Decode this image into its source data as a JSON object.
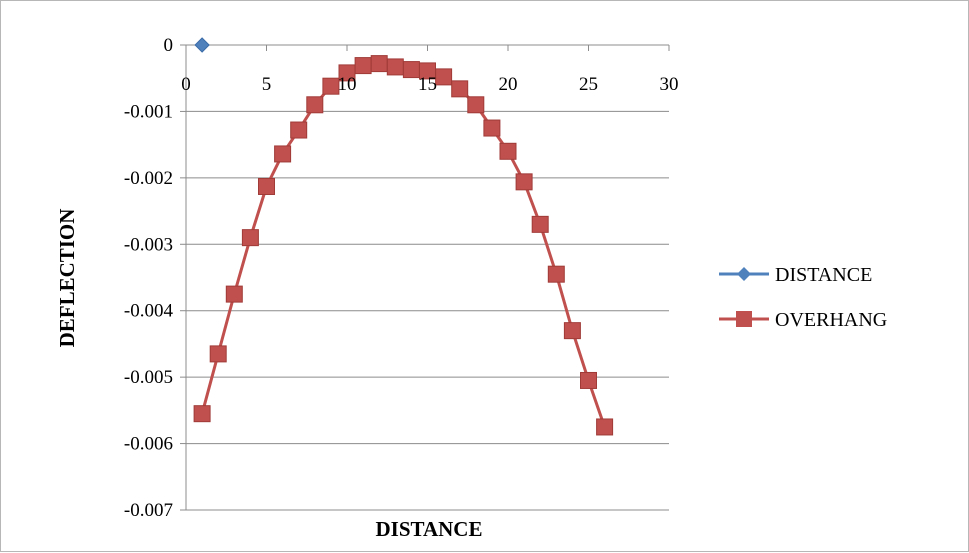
{
  "chart_data": {
    "type": "line",
    "title": "",
    "xlabel": "DISTANCE",
    "ylabel": "DEFLECTION",
    "xlim": [
      0,
      30
    ],
    "ylim": [
      -0.007,
      0
    ],
    "x_ticks": [
      0,
      5,
      10,
      15,
      20,
      25,
      30
    ],
    "y_ticks": [
      0,
      -0.001,
      -0.002,
      -0.003,
      -0.004,
      -0.005,
      -0.006,
      -0.007
    ],
    "x_tick_labels": [
      "0",
      "5",
      "10",
      "15",
      "20",
      "25",
      "30"
    ],
    "y_tick_labels": [
      "0",
      "-0.001",
      "-0.002",
      "-0.003",
      "-0.004",
      "-0.005",
      "-0.006",
      "-0.007"
    ],
    "grid": "horizontal major gridlines",
    "x_axis_position": "top (at y = 0)",
    "legend_position": "right",
    "series": [
      {
        "name": "DISTANCE",
        "color": "#4f81bd",
        "marker": "diamond",
        "x": [
          1
        ],
        "y": [
          0
        ]
      },
      {
        "name": "OVERHANG",
        "color": "#c0504d",
        "marker": "square",
        "x": [
          1,
          2,
          3,
          4,
          5,
          6,
          7,
          8,
          9,
          10,
          11,
          12,
          13,
          14,
          15,
          16,
          17,
          18,
          19,
          20,
          21,
          22,
          23,
          24,
          25,
          26
        ],
        "y": [
          -0.00555,
          -0.00465,
          -0.00375,
          -0.0029,
          -0.00213,
          -0.00164,
          -0.00128,
          -0.0009,
          -0.00062,
          -0.00042,
          -0.00031,
          -0.00028,
          -0.00033,
          -0.00037,
          -0.00039,
          -0.00048,
          -0.00066,
          -0.0009,
          -0.00125,
          -0.0016,
          -0.00206,
          -0.0027,
          -0.00345,
          -0.0043,
          -0.00505,
          -0.00575
        ]
      }
    ]
  }
}
